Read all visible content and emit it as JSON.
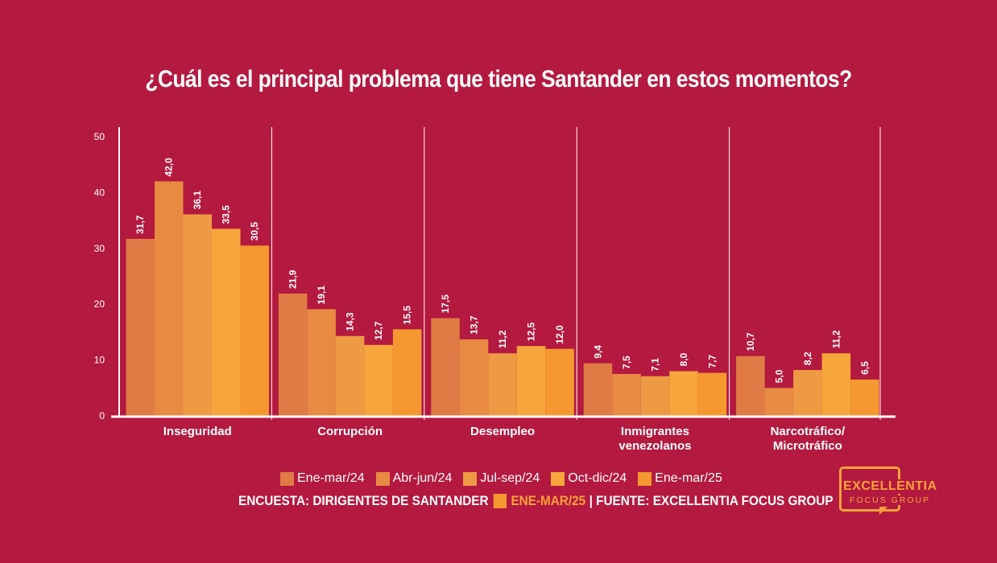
{
  "title": "¿Cuál es el principal problema que tiene Santander en estos momentos?",
  "chart_data": {
    "type": "bar",
    "title": "¿Cuál es el principal problema que tiene Santander en estos momentos?",
    "categories": [
      "Inseguridad",
      "Corrupción",
      "Desempleo",
      "Inmigrantes venezolanos",
      "Narcotráfico/ Microtráfico"
    ],
    "category_lines": [
      [
        "Inseguridad"
      ],
      [
        "Corrupción"
      ],
      [
        "Desempleo"
      ],
      [
        "Inmigrantes",
        "venezolanos"
      ],
      [
        "Narcotráfico/",
        "Microtráfico"
      ]
    ],
    "series": [
      {
        "name": "Ene-mar/24",
        "color": "#e07b45",
        "values": [
          31.7,
          21.9,
          17.5,
          9.4,
          10.7
        ],
        "labels": [
          "31,7",
          "21,9",
          "17,5",
          "9,4",
          "10,7"
        ]
      },
      {
        "name": "Abr-jun/24",
        "color": "#e88a42",
        "values": [
          42.0,
          19.1,
          13.7,
          7.5,
          5.0
        ],
        "labels": [
          "42,0",
          "19,1",
          "13,7",
          "7,5",
          "5,0"
        ]
      },
      {
        "name": "Jul-sep/24",
        "color": "#ee9a44",
        "values": [
          36.1,
          14.3,
          11.2,
          7.1,
          8.2
        ],
        "labels": [
          "36,1",
          "14,3",
          "11,2",
          "7,1",
          "8,2"
        ]
      },
      {
        "name": "Oct-dic/24",
        "color": "#f7a63c",
        "values": [
          33.5,
          12.7,
          12.5,
          8.0,
          11.2
        ],
        "labels": [
          "33,5",
          "12,7",
          "12,5",
          "8,0",
          "11,2"
        ]
      },
      {
        "name": "Ene-mar/25",
        "color": "#f4982f",
        "values": [
          30.5,
          15.5,
          12.0,
          7.7,
          6.5
        ],
        "labels": [
          "30,5",
          "15,5",
          "12,0",
          "7,7",
          "6,5"
        ]
      }
    ],
    "ylim": [
      0,
      50
    ],
    "yticks": [
      0,
      10,
      20,
      30,
      40,
      50
    ],
    "xlabel": "",
    "ylabel": "",
    "legend_position": "bottom",
    "grid": false
  },
  "footer": {
    "left": "ENCUESTA: DIRIGENTES DE SANTANDER",
    "highlight": "ENE-MAR/25",
    "right": "| FUENTE: EXCELLENTIA FOCUS GROUP",
    "highlight_color": "#f7a23a"
  },
  "logo": {
    "name": "EXCELLENTIA",
    "sub": "FOCUS GROUP",
    "color": "#f7a23a"
  },
  "colors": {
    "background": "#b4193f",
    "text": "#ffffff"
  }
}
